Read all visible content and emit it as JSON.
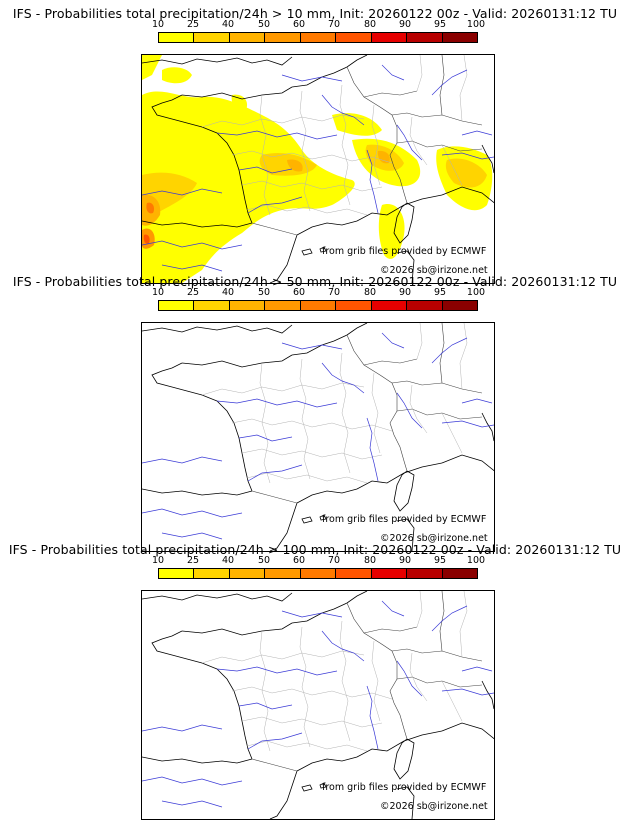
{
  "colorbar": {
    "ticks": [
      "10",
      "25",
      "40",
      "50",
      "60",
      "70",
      "80",
      "90",
      "95",
      "100"
    ],
    "colors": [
      "#ffff00",
      "#ffd400",
      "#ffb300",
      "#ff9900",
      "#ff7a00",
      "#ff5500",
      "#e60000",
      "#b80000",
      "#8a0000",
      "#5c0000"
    ]
  },
  "credits": {
    "source": "from grib files provided by ECMWF",
    "copyright": "©2026 sb@irizone.net"
  },
  "panels": [
    {
      "title": "IFS - Probabilities total precipitation/24h > 10 mm, Init: 20260122 00z - Valid: 20260131:12 TU",
      "threshold": "> 10 mm"
    },
    {
      "title": "IFS - Probabilities total precipitation/24h > 50 mm, Init: 20260122 00z - Valid: 20260131:12 TU",
      "threshold": "> 50 mm"
    },
    {
      "title": "IFS - Probabilities total precipitation/24h > 100 mm, Init: 20260122 00z - Valid: 20260131:12 TU",
      "threshold": "> 100 mm"
    }
  ]
}
